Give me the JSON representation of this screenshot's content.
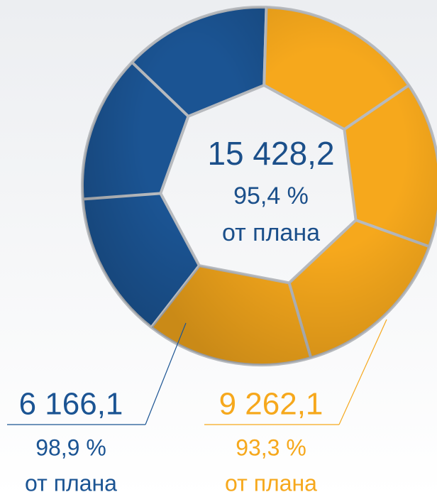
{
  "chart_data": {
    "type": "donut",
    "total": 15428.2,
    "total_label": "15 428,2",
    "total_percent": 95.4,
    "total_percent_label": "95,4 %",
    "note": "от плана",
    "values": [
      6166.1,
      9262.1
    ],
    "value_labels": [
      "6 166,1",
      "9 262,1"
    ],
    "percents": [
      98.9,
      93.3
    ],
    "percent_labels": [
      "98,9 %",
      "93,3 %"
    ],
    "colors": [
      "#1b5493",
      "#f6a81c"
    ]
  }
}
